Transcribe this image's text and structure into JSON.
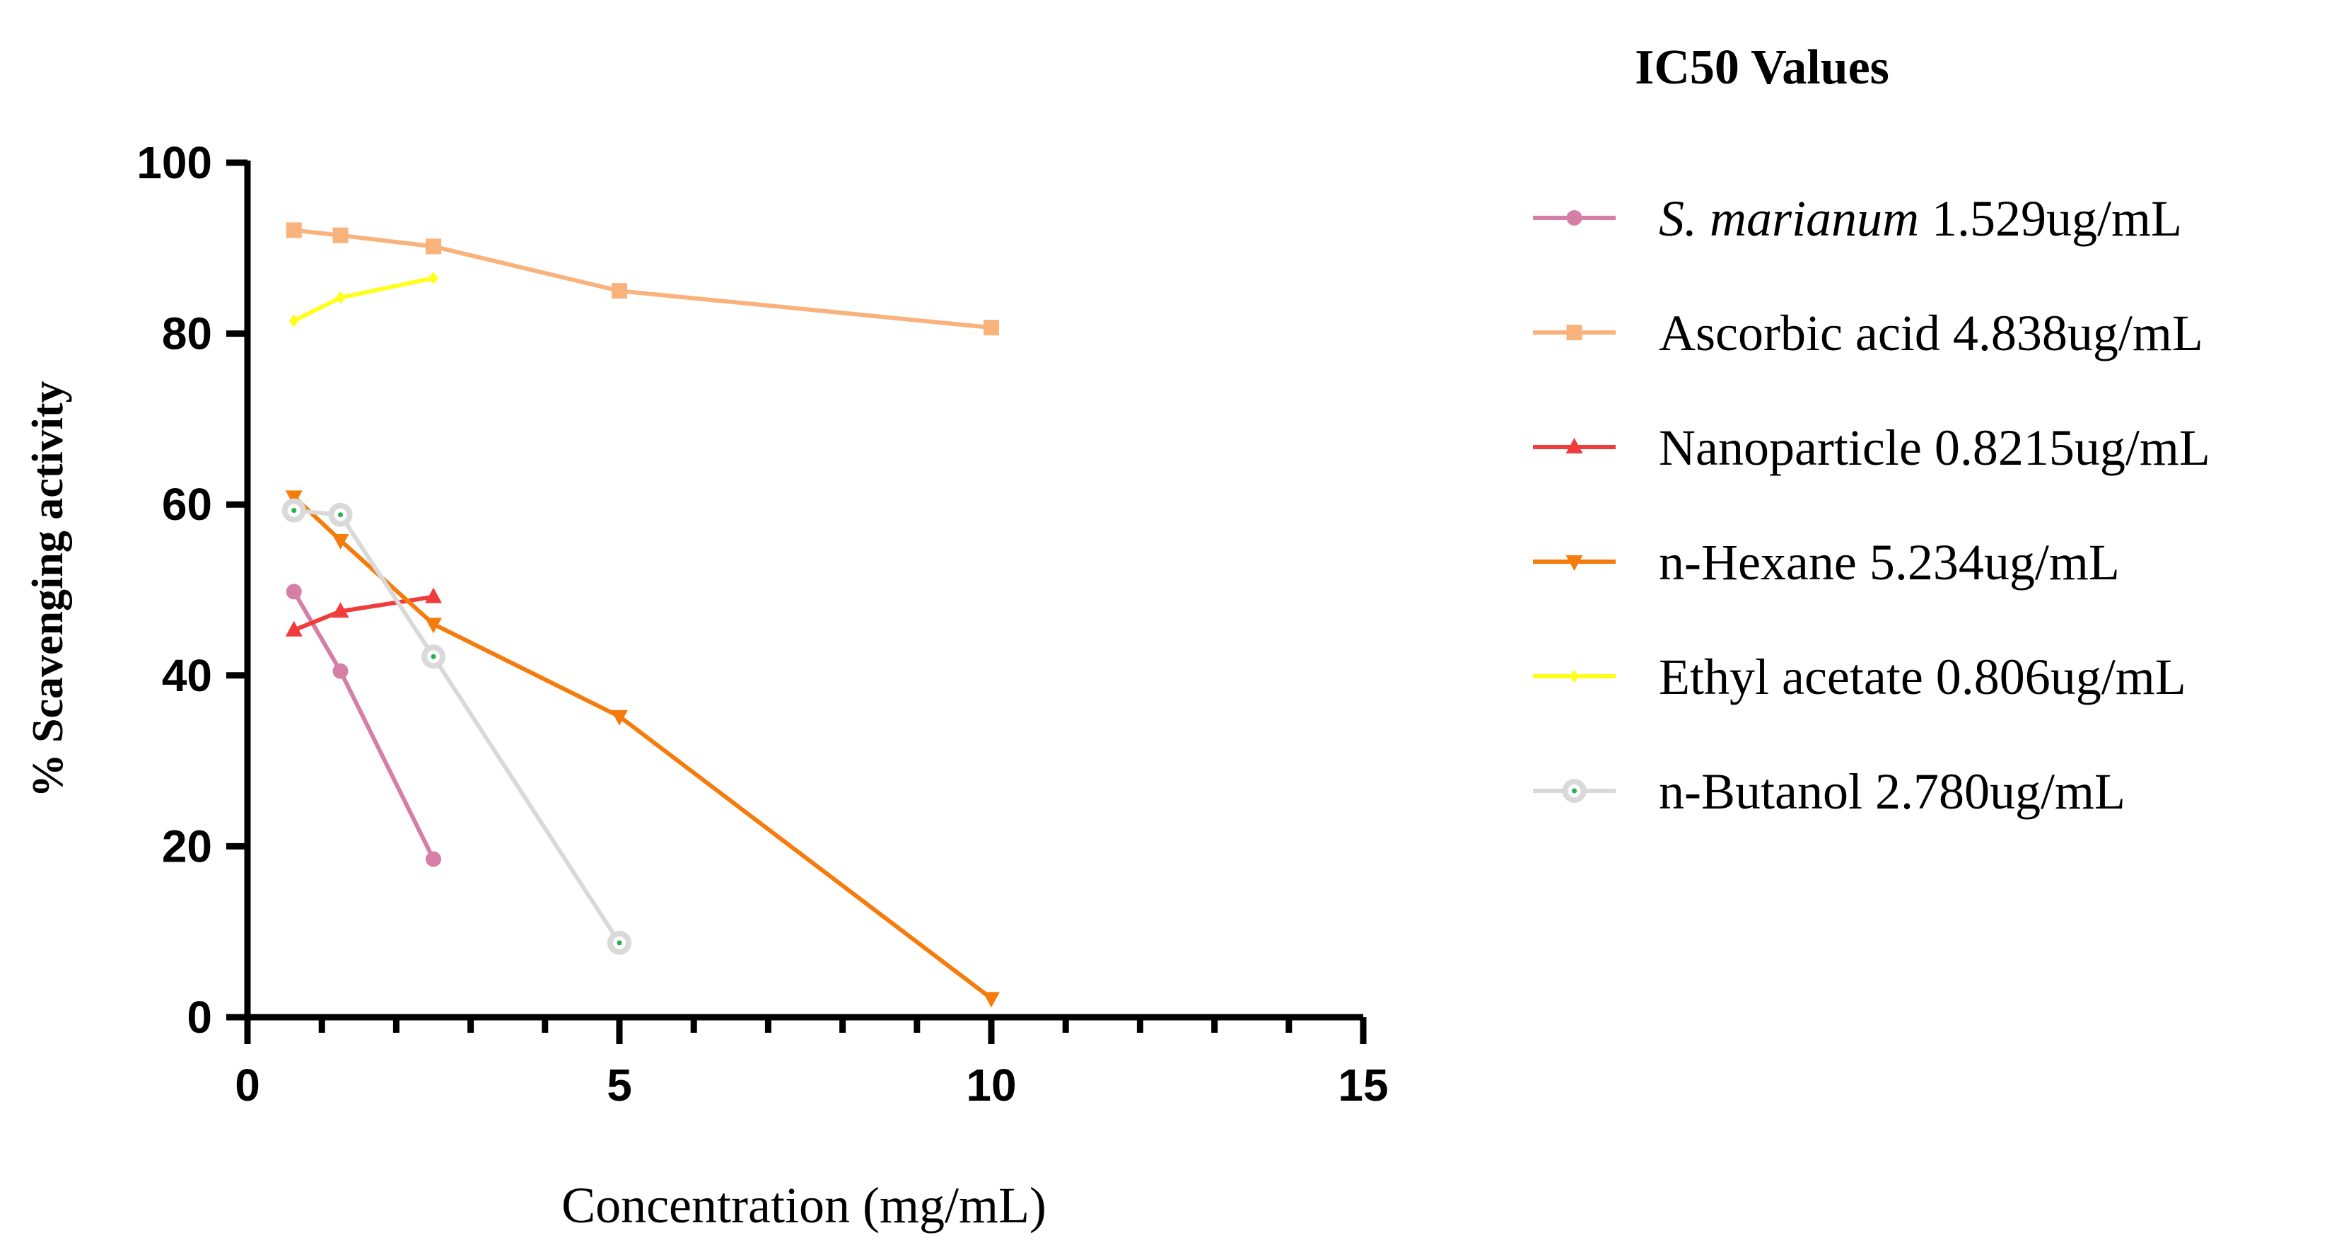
{
  "chart_data": {
    "type": "line",
    "title": "",
    "xlabel": "Concentration (mg/mL)",
    "ylabel": "% Scavenging activity",
    "xlim": [
      0,
      15
    ],
    "ylim": [
      0,
      100
    ],
    "x_ticks": [
      0,
      5,
      10,
      15
    ],
    "y_ticks": [
      0,
      20,
      40,
      60,
      80,
      100
    ],
    "grid": false,
    "legend": {
      "title": "IC50 Values",
      "placement": "right"
    },
    "series": [
      {
        "name": "S. marianum",
        "legend_label": {
          "italic": "S. marianum",
          "rest": " 1.529ug/mL"
        },
        "color": "#d67fa6",
        "marker": "circle",
        "x": [
          0.625,
          1.25,
          2.5
        ],
        "y": [
          49.8,
          40.5,
          18.5
        ]
      },
      {
        "name": "Ascorbic acid",
        "legend_label": {
          "italic": "",
          "rest": "Ascorbic acid 4.838ug/mL"
        },
        "color": "#f9b27c",
        "marker": "square",
        "x": [
          0.625,
          1.25,
          2.5,
          5,
          10
        ],
        "y": [
          92.1,
          91.5,
          90.2,
          85.0,
          80.7
        ]
      },
      {
        "name": "Nanoparticle",
        "legend_label": {
          "italic": "",
          "rest": "Nanoparticle 0.8215ug/mL"
        },
        "color": "#f03c3c",
        "marker": "triangle-up",
        "x": [
          0.625,
          1.25,
          2.5
        ],
        "y": [
          45.3,
          47.5,
          49.2
        ]
      },
      {
        "name": "n-Hexane",
        "legend_label": {
          "italic": "",
          "rest": "n-Hexane 5.234ug/mL"
        },
        "color": "#f57c0c",
        "marker": "triangle-down",
        "x": [
          0.625,
          1.25,
          2.5,
          5,
          10
        ],
        "y": [
          60.9,
          55.8,
          46.0,
          35.2,
          2.2
        ]
      },
      {
        "name": "Ethyl acetate",
        "legend_label": {
          "italic": "",
          "rest": "Ethyl acetate 0.806ug/mL"
        },
        "color": "#ffff1e",
        "marker": "diamond",
        "x": [
          0.625,
          1.25,
          2.5
        ],
        "y": [
          81.5,
          84.2,
          86.5
        ]
      },
      {
        "name": "n-Butanol",
        "legend_label": {
          "italic": "",
          "rest": "n-Butanol 2.780ug/mL"
        },
        "color": "#d9d9d9",
        "marker": "hollow-circle-dot",
        "dot_color": "#22b14c",
        "x": [
          0.625,
          1.25,
          2.5,
          5
        ],
        "y": [
          59.3,
          58.8,
          42.2,
          8.7
        ]
      }
    ]
  }
}
